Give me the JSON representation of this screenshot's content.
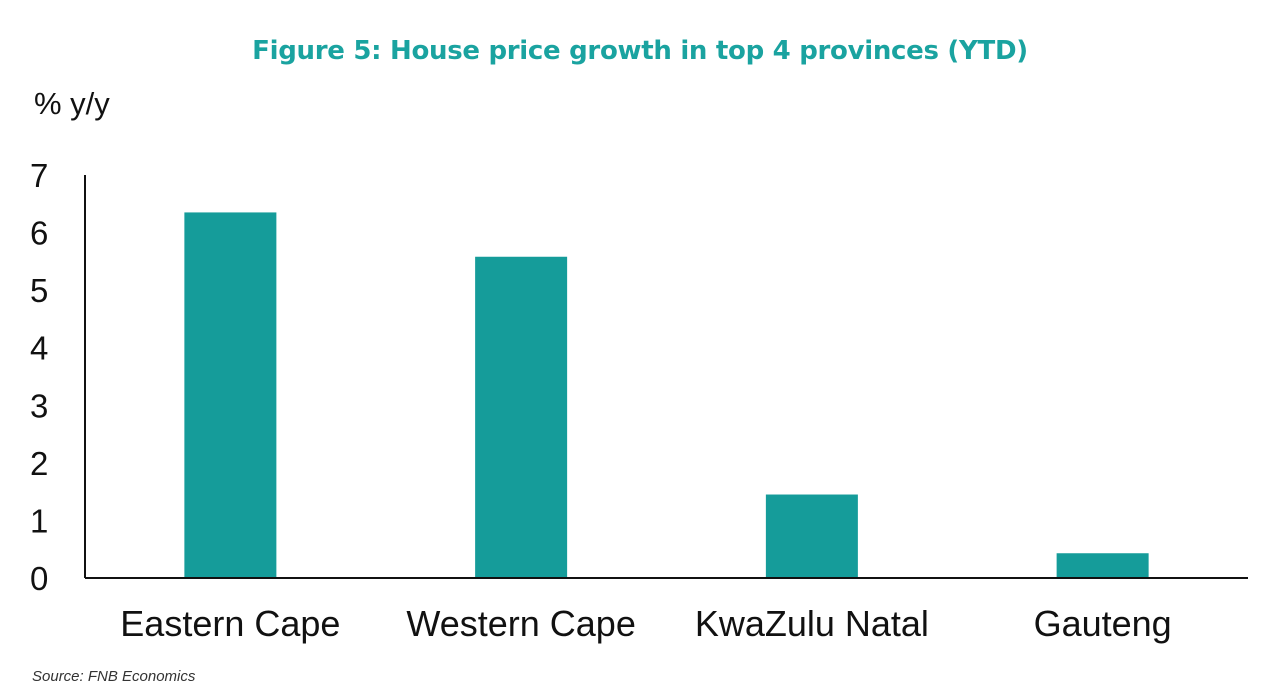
{
  "chart_data": {
    "type": "bar",
    "title": "Figure 5: House price growth in top 4 provinces (YTD)",
    "ylabel": "% y/y",
    "xlabel": "",
    "categories": [
      "Eastern Cape",
      "Western Cape",
      "KwaZulu Natal",
      "Gauteng"
    ],
    "values": [
      6.35,
      5.58,
      1.45,
      0.43
    ],
    "ylim": [
      0,
      7
    ],
    "yticks": [
      "0",
      "1",
      "2",
      "3",
      "4",
      "5",
      "6",
      "7"
    ],
    "grid": false,
    "legend": "none",
    "bar_color": "#159c9a"
  },
  "source": "Source: FNB Economics"
}
